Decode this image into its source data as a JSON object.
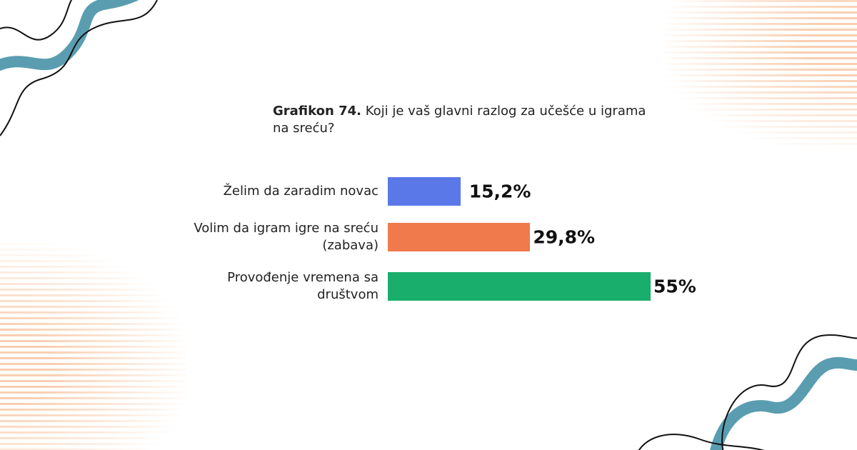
{
  "chart_data": {
    "type": "bar",
    "orientation": "horizontal",
    "title_label": "Grafikon 74.",
    "title": "Koji je vaš glavni razlog za učešće u igrama na sreću?",
    "categories": [
      "Želim da zaradim novac",
      "Volim da igram igre na sreću (zabava)",
      "Provođenje vremena sa društvom"
    ],
    "values": [
      15.2,
      29.8,
      55
    ],
    "value_labels": [
      "15,2%",
      "29,8%",
      "55%"
    ],
    "colors": [
      "#5b78e8",
      "#f07a4b",
      "#19ae6b"
    ]
  }
}
